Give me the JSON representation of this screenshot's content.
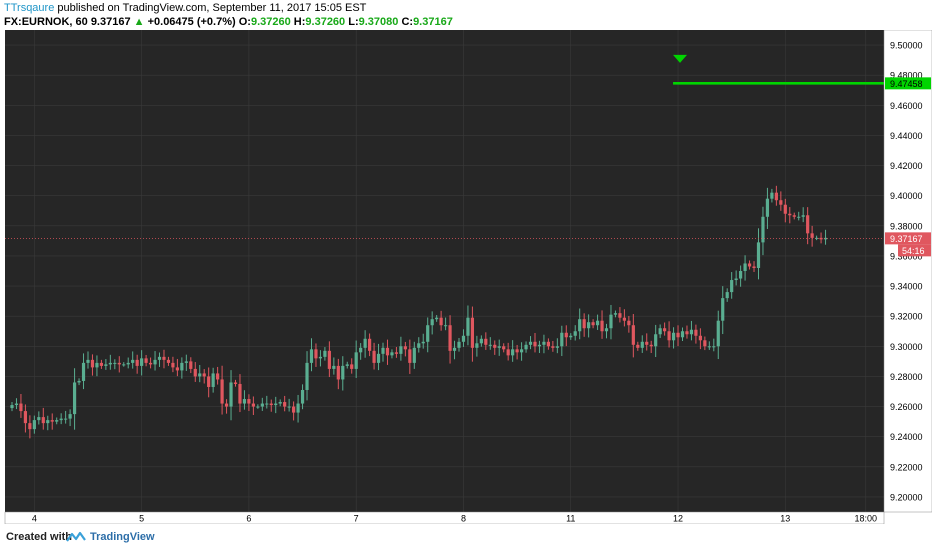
{
  "header": {
    "author": "TTrsqaure",
    "published_text": " published on TradingView.com, September 11, 2017 15:05 EST",
    "symbol": "FX:EURNOK, 60",
    "last": "9.37167",
    "change_arrow": "▲",
    "change": "+0.06475 (+0.7%)",
    "o_label": "O:",
    "o_value": "9.37260",
    "h_label": "H:",
    "h_value": "9.37260",
    "l_label": "L:",
    "l_value": "9.37080",
    "c_label": "C:",
    "c_value": "9.37167"
  },
  "footer": {
    "created_with": "Created with",
    "brand": "TradingView"
  },
  "colors": {
    "background": "#262626",
    "grid": "#3a3a3a",
    "up": "#5aae91",
    "down": "#e0575f",
    "price_line": "#e0575f",
    "target": "#00d400",
    "axis_bg": "#ffffff",
    "axis_text": "#000000"
  },
  "chart_data": {
    "type": "candlestick",
    "symbol": "FX:EURNOK",
    "interval": "60",
    "ylim": [
      9.19,
      9.51
    ],
    "y_ticks": [
      "9.20000",
      "9.22000",
      "9.24000",
      "9.26000",
      "9.28000",
      "9.30000",
      "9.32000",
      "9.34000",
      "9.36000",
      "9.38000",
      "9.40000",
      "9.42000",
      "9.44000",
      "9.46000",
      "9.48000",
      "9.50000"
    ],
    "x_ticks": [
      {
        "label": "4",
        "t": 5
      },
      {
        "label": "5",
        "t": 29
      },
      {
        "label": "6",
        "t": 53
      },
      {
        "label": "7",
        "t": 77
      },
      {
        "label": "8",
        "t": 101
      },
      {
        "label": "11",
        "t": 125
      },
      {
        "label": "12",
        "t": 149
      },
      {
        "label": "13",
        "t": 173
      },
      {
        "label": "18:00",
        "t": 191
      }
    ],
    "current_price": "9.37167",
    "countdown": "54:16",
    "target_price": "9.47458",
    "target_start_t": 149,
    "closes": [
      9.261,
      9.262,
      9.257,
      9.249,
      9.245,
      9.251,
      9.253,
      9.249,
      9.251,
      9.25,
      9.251,
      9.252,
      9.252,
      9.255,
      9.276,
      9.277,
      9.289,
      9.291,
      9.286,
      9.289,
      9.287,
      9.288,
      9.289,
      9.289,
      9.288,
      9.288,
      9.289,
      9.291,
      9.287,
      9.292,
      9.289,
      9.288,
      9.291,
      9.293,
      9.291,
      9.289,
      9.286,
      9.284,
      9.289,
      9.29,
      9.285,
      9.28,
      9.282,
      9.28,
      9.273,
      9.282,
      9.278,
      9.262,
      9.26,
      9.276,
      9.275,
      9.262,
      9.265,
      9.262,
      9.26,
      9.26,
      9.262,
      9.262,
      9.261,
      9.262,
      9.263,
      9.26,
      9.26,
      9.256,
      9.262,
      9.271,
      9.289,
      9.298,
      9.292,
      9.293,
      9.297,
      9.285,
      9.287,
      9.278,
      9.287,
      9.288,
      9.285,
      9.296,
      9.299,
      9.305,
      9.297,
      9.289,
      9.295,
      9.299,
      9.294,
      9.296,
      9.295,
      9.3,
      9.298,
      9.289,
      9.299,
      9.302,
      9.303,
      9.314,
      9.318,
      9.319,
      9.314,
      9.314,
      9.297,
      9.299,
      9.303,
      9.307,
      9.319,
      9.299,
      9.302,
      9.305,
      9.301,
      9.301,
      9.299,
      9.3,
      9.298,
      9.294,
      9.298,
      9.296,
      9.298,
      9.301,
      9.303,
      9.3,
      9.301,
      9.303,
      9.3,
      9.299,
      9.3,
      9.309,
      9.306,
      9.307,
      9.31,
      9.318,
      9.312,
      9.316,
      9.314,
      9.317,
      9.31,
      9.312,
      9.321,
      9.322,
      9.319,
      9.317,
      9.314,
      9.301,
      9.299,
      9.303,
      9.301,
      9.3,
      9.308,
      9.312,
      9.31,
      9.304,
      9.309,
      9.306,
      9.31,
      9.308,
      9.311,
      9.307,
      9.304,
      9.3,
      9.3,
      9.3,
      9.317,
      9.332,
      9.336,
      9.344,
      9.345,
      9.35,
      9.355,
      9.353,
      9.352,
      9.369,
      9.386,
      9.398,
      9.402,
      9.397,
      9.394,
      9.388,
      9.387,
      9.386,
      9.386,
      9.387,
      9.375,
      9.372,
      9.372,
      9.371,
      9.372
    ]
  }
}
